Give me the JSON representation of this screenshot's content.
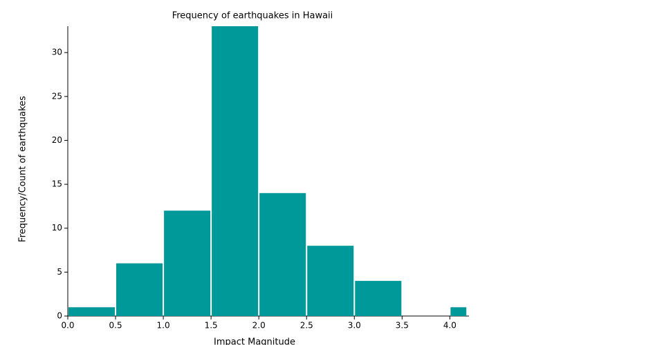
{
  "chart_data": {
    "type": "histogram",
    "title": "Frequency of earthquakes in Hawaii",
    "x_label": "Impact Magnitude",
    "y_label": "Frequency/Count of earthquakes",
    "bins": [
      0,
      0.5,
      1,
      1.5,
      2,
      2.5,
      3,
      3.5,
      4,
      4.18
    ],
    "values": [
      1,
      6,
      12,
      33,
      14,
      8,
      4,
      0,
      1
    ],
    "color": "#009999",
    "xlim": [
      0,
      4.2
    ],
    "xticks": [
      {
        "value": 0,
        "label": "0.0"
      },
      0.5,
      {
        "value": 1,
        "label": "1.0"
      },
      1.5,
      {
        "value": 2,
        "label": "2.0"
      },
      2.5,
      {
        "value": 3,
        "label": "3.0"
      },
      3.5,
      {
        "value": 4,
        "label": "4.0"
      }
    ],
    "ylim": [
      0,
      33
    ],
    "yticks": [
      0,
      5,
      10,
      15,
      20,
      25,
      30
    ]
  }
}
